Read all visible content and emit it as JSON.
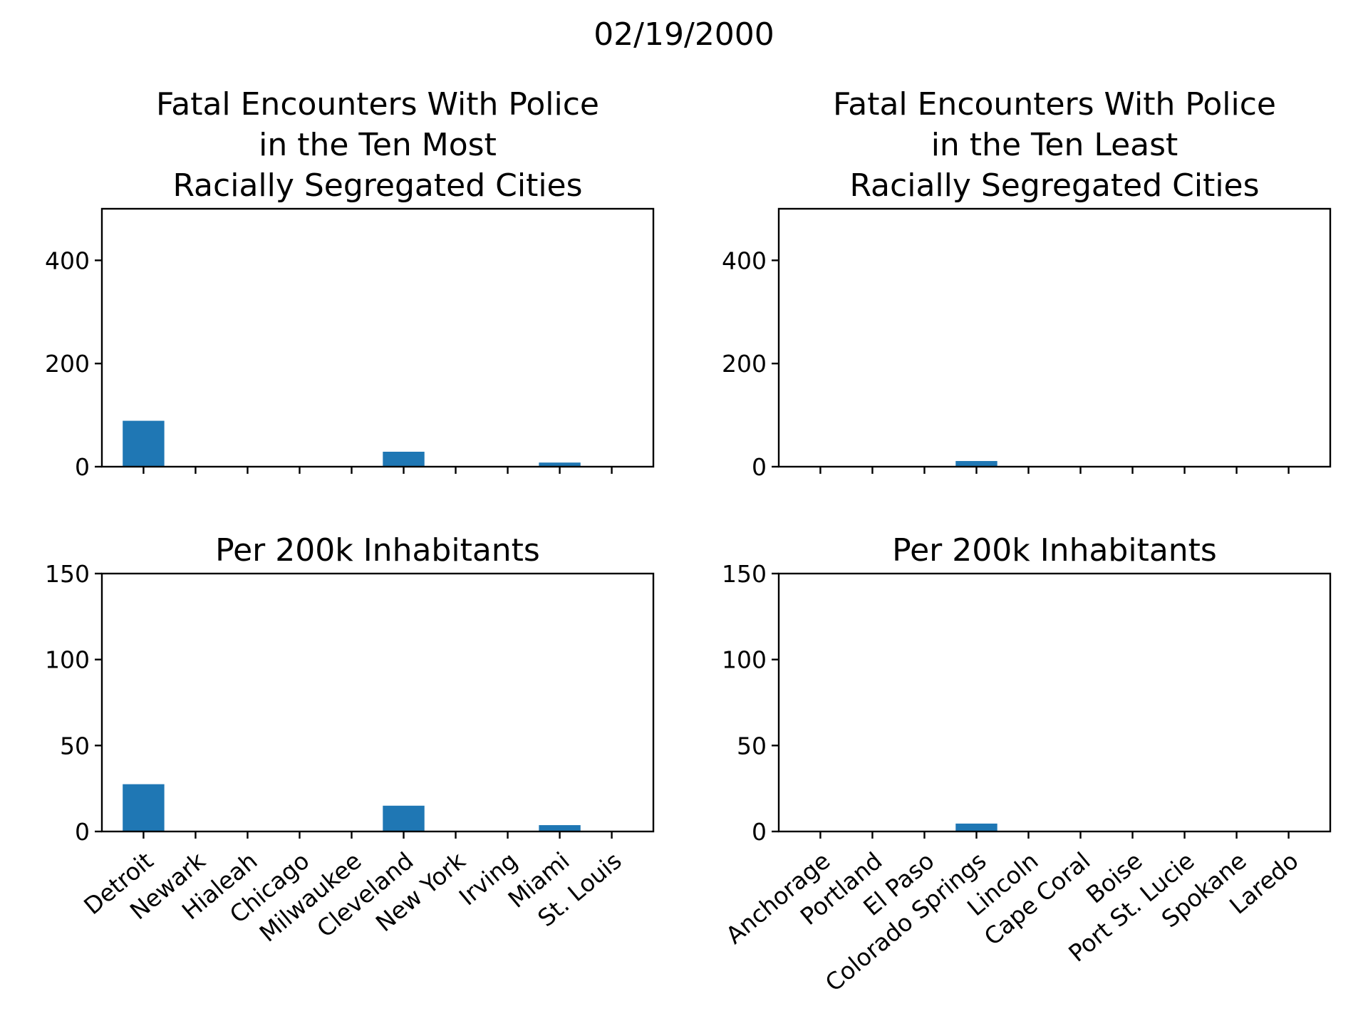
{
  "suptitle": "02/19/2000",
  "colors": {
    "bar": "#1f77b4"
  },
  "chart_data": [
    {
      "type": "bar",
      "title": "Fatal Encounters With Police\nin the Ten Most\nRacially Segregated Cities",
      "categories": [
        "Detroit",
        "Newark",
        "Hialeah",
        "Chicago",
        "Milwaukee",
        "Cleveland",
        "New York",
        "Irving",
        "Miami",
        "St. Louis"
      ],
      "values": [
        89,
        0,
        0,
        0,
        0,
        29,
        0,
        0,
        8,
        0
      ],
      "ylim": [
        0,
        500
      ],
      "yticks": [
        0,
        200,
        400
      ],
      "show_xticklabels": false
    },
    {
      "type": "bar",
      "title": "Fatal Encounters With Police\nin the Ten Least\nRacially Segregated Cities",
      "categories": [
        "Anchorage",
        "Portland",
        "El Paso",
        "Colorado Springs",
        "Lincoln",
        "Cape Coral",
        "Boise",
        "Port St. Lucie",
        "Spokane",
        "Laredo"
      ],
      "values": [
        0,
        0,
        0,
        11,
        0,
        0,
        0,
        0,
        0,
        0
      ],
      "ylim": [
        0,
        500
      ],
      "yticks": [
        0,
        200,
        400
      ],
      "show_xticklabels": false
    },
    {
      "type": "bar",
      "title": "Per 200k Inhabitants",
      "categories": [
        "Detroit",
        "Newark",
        "Hialeah",
        "Chicago",
        "Milwaukee",
        "Cleveland",
        "New York",
        "Irving",
        "Miami",
        "St. Louis"
      ],
      "values": [
        27.5,
        0,
        0,
        0,
        0,
        15,
        0,
        0,
        3.7,
        0
      ],
      "ylim": [
        0,
        150
      ],
      "yticks": [
        0,
        50,
        100,
        150
      ],
      "show_xticklabels": true
    },
    {
      "type": "bar",
      "title": "Per 200k Inhabitants",
      "categories": [
        "Anchorage",
        "Portland",
        "El Paso",
        "Colorado Springs",
        "Lincoln",
        "Cape Coral",
        "Boise",
        "Port St. Lucie",
        "Spokane",
        "Laredo"
      ],
      "values": [
        0,
        0,
        0,
        4.6,
        0,
        0,
        0,
        0,
        0,
        0
      ],
      "ylim": [
        0,
        150
      ],
      "yticks": [
        0,
        50,
        100,
        150
      ],
      "show_xticklabels": true
    }
  ]
}
